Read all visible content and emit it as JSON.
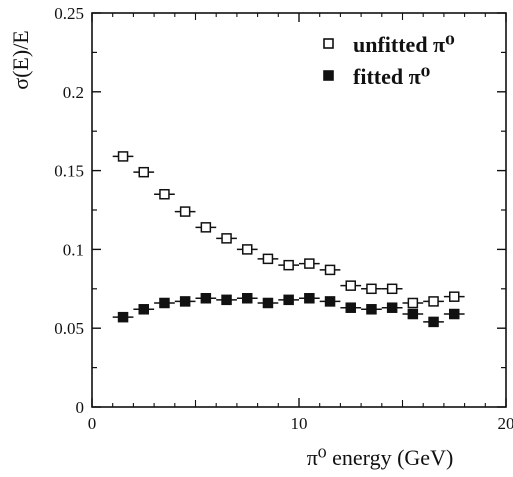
{
  "chart_data": {
    "type": "scatter",
    "title": "",
    "xlabel": "π⁰ energy   (GeV)",
    "ylabel": "σ(E)/E",
    "xlim": [
      0,
      20
    ],
    "ylim": [
      0,
      0.25
    ],
    "x_ticks": [
      "0",
      "10",
      "20"
    ],
    "y_ticks": [
      "0",
      "0.05",
      "0.1",
      "0.15",
      "0.2",
      "0.25"
    ],
    "x_error_half_width": 0.5,
    "legend_position": "top-right",
    "series": [
      {
        "name": "unfitted π⁰",
        "marker": "open-square",
        "color": "#111111",
        "x": [
          1.5,
          2.5,
          3.5,
          4.5,
          5.5,
          6.5,
          7.5,
          8.5,
          9.5,
          10.5,
          11.5,
          12.5,
          13.5,
          14.5,
          15.5,
          16.5,
          17.5
        ],
        "y": [
          0.159,
          0.149,
          0.135,
          0.124,
          0.114,
          0.107,
          0.1,
          0.094,
          0.09,
          0.091,
          0.087,
          0.077,
          0.075,
          0.075,
          0.066,
          0.067,
          0.07
        ]
      },
      {
        "name": "fitted π⁰",
        "marker": "filled-square",
        "color": "#111111",
        "x": [
          1.5,
          2.5,
          3.5,
          4.5,
          5.5,
          6.5,
          7.5,
          8.5,
          9.5,
          10.5,
          11.5,
          12.5,
          13.5,
          14.5,
          15.5,
          16.5,
          17.5
        ],
        "y": [
          0.057,
          0.062,
          0.066,
          0.067,
          0.069,
          0.068,
          0.069,
          0.066,
          0.068,
          0.069,
          0.067,
          0.063,
          0.062,
          0.063,
          0.059,
          0.054,
          0.059
        ]
      }
    ]
  }
}
